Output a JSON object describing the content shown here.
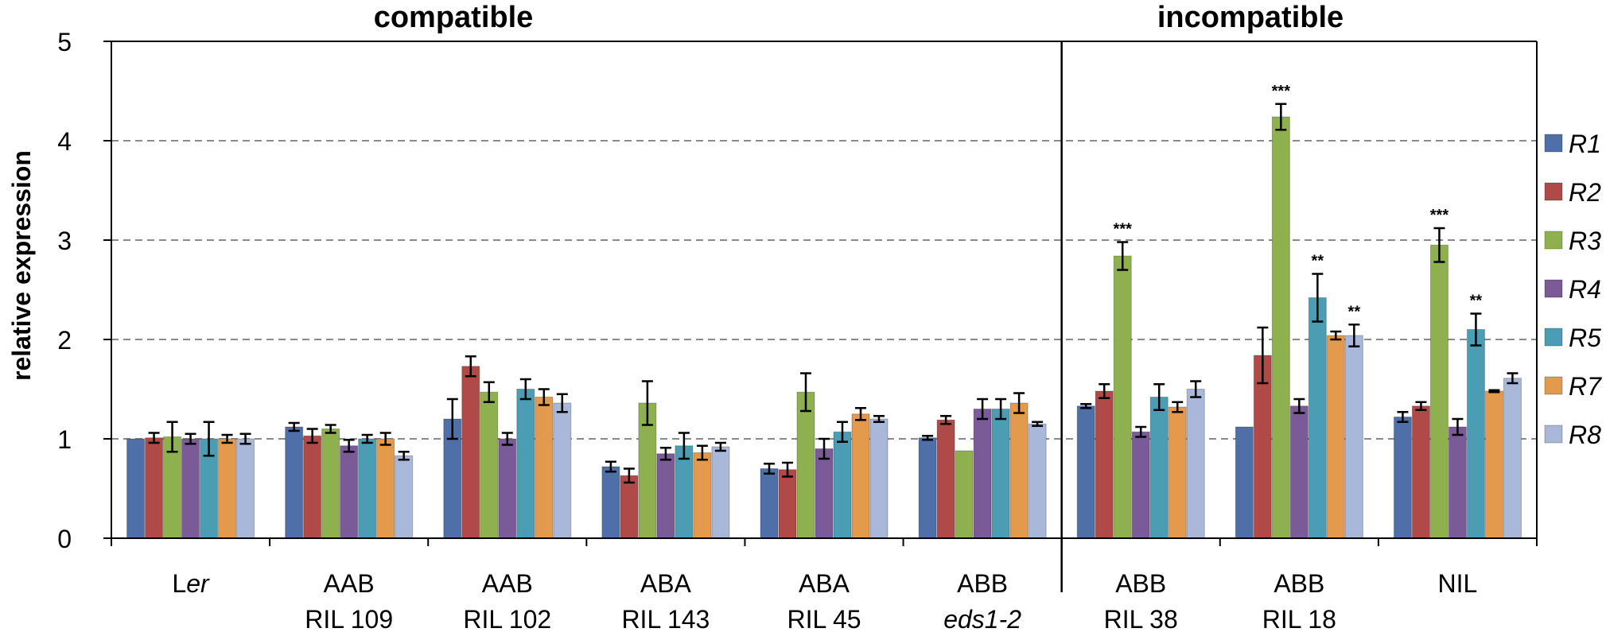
{
  "chart_data": {
    "type": "bar",
    "group_headers": [
      "compatible",
      "incompatible"
    ],
    "ylabel": "relative expression",
    "ylim": [
      0,
      5
    ],
    "yticks": [
      "0",
      "1",
      "2",
      "3",
      "4",
      "5"
    ],
    "grid": "dashed horizontal at 1–4",
    "legend_position": "right",
    "categories": [
      {
        "line1_prefix": "L",
        "line1_italic": "er",
        "line2": "",
        "line2_italic": false
      },
      {
        "line1_prefix": "AAB",
        "line1_italic": "",
        "line2": "RIL 109",
        "line2_italic": false
      },
      {
        "line1_prefix": "AAB",
        "line1_italic": "",
        "line2": "RIL 102",
        "line2_italic": false
      },
      {
        "line1_prefix": "ABA",
        "line1_italic": "",
        "line2": "RIL 143",
        "line2_italic": false
      },
      {
        "line1_prefix": "ABA",
        "line1_italic": "",
        "line2": "RIL 45",
        "line2_italic": false
      },
      {
        "line1_prefix": "ABB",
        "line1_italic": "",
        "line2": "eds1-2",
        "line2_italic": true
      },
      {
        "line1_prefix": "ABB",
        "line1_italic": "",
        "line2": "RIL 38",
        "line2_italic": false
      },
      {
        "line1_prefix": "ABB",
        "line1_italic": "",
        "line2": "RIL 18",
        "line2_italic": false
      },
      {
        "line1_prefix": "NIL",
        "line1_italic": "",
        "line2": "",
        "line2_italic": false
      }
    ],
    "series": [
      {
        "name": "R1",
        "color": "#4f6fa8",
        "values": [
          1.0,
          1.12,
          1.2,
          0.72,
          0.7,
          1.01,
          1.33,
          1.12,
          1.22
        ],
        "errors": [
          0.0,
          0.04,
          0.2,
          0.05,
          0.05,
          0.02,
          0.02,
          0.0,
          0.05
        ]
      },
      {
        "name": "R2",
        "color": "#b04a48",
        "values": [
          1.01,
          1.03,
          1.73,
          0.63,
          0.69,
          1.19,
          1.48,
          1.84,
          1.33
        ],
        "errors": [
          0.05,
          0.07,
          0.1,
          0.07,
          0.07,
          0.04,
          0.07,
          0.28,
          0.04
        ]
      },
      {
        "name": "R3",
        "color": "#8fb04e",
        "values": [
          1.02,
          1.1,
          1.47,
          1.36,
          1.47,
          0.88,
          2.84,
          4.24,
          2.95
        ],
        "errors": [
          0.15,
          0.04,
          0.1,
          0.22,
          0.19,
          0.0,
          0.14,
          0.13,
          0.17
        ]
      },
      {
        "name": "R4",
        "color": "#7b5a98",
        "values": [
          1.0,
          0.93,
          1.0,
          0.85,
          0.9,
          1.3,
          1.07,
          1.33,
          1.12
        ]
      },
      {
        "name": "R5",
        "color": "#4b9db3",
        "values": [
          1.0,
          1.0,
          1.5,
          0.93,
          1.07,
          1.3,
          1.42,
          2.42,
          2.1
        ],
        "errors": [
          0.17,
          0.04,
          0.1,
          0.13,
          0.1,
          0.1,
          0.13,
          0.24,
          0.16
        ]
      },
      {
        "name": "R7",
        "color": "#e39a4d",
        "values": [
          1.0,
          1.0,
          1.42,
          0.86,
          1.25,
          1.36,
          1.32,
          2.04,
          1.48
        ],
        "errors": [
          0.04,
          0.06,
          0.08,
          0.07,
          0.06,
          0.1,
          0.05,
          0.04,
          0.01
        ]
      },
      {
        "name": "R8",
        "color": "#a9b8d8",
        "values": [
          1.0,
          0.83,
          1.36,
          0.92,
          1.2,
          1.15,
          1.5,
          2.04,
          1.61
        ],
        "errors": [
          0.05,
          0.04,
          0.09,
          0.04,
          0.03,
          0.02,
          0.08,
          0.11,
          0.05
        ]
      }
    ],
    "r4_errors": [
      0.05,
      0.06,
      0.06,
      0.06,
      0.1,
      0.1,
      0.05,
      0.07,
      0.08
    ],
    "annotations": [
      {
        "category_index": 6,
        "series_index": 2,
        "text": "***"
      },
      {
        "category_index": 7,
        "series_index": 2,
        "text": "***"
      },
      {
        "category_index": 7,
        "series_index": 4,
        "text": "**"
      },
      {
        "category_index": 7,
        "series_index": 6,
        "text": "**"
      },
      {
        "category_index": 8,
        "series_index": 2,
        "text": "***"
      },
      {
        "category_index": 8,
        "series_index": 4,
        "text": "**"
      }
    ]
  }
}
